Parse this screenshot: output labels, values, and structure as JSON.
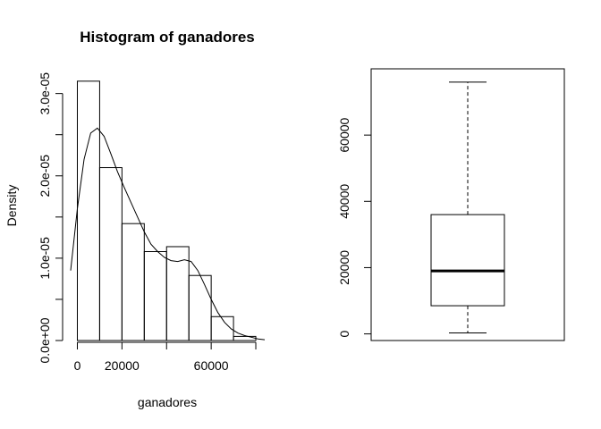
{
  "chart_data": [
    {
      "type": "bar",
      "subtype": "histogram",
      "title": "Histogram of ganadores",
      "xlabel": "ganadores",
      "ylabel": "Density",
      "bins": [
        {
          "x0": 0,
          "x1": 10000,
          "density": 3.15e-05
        },
        {
          "x0": 10000,
          "x1": 20000,
          "density": 2.1e-05
        },
        {
          "x0": 20000,
          "x1": 30000,
          "density": 1.42e-05
        },
        {
          "x0": 30000,
          "x1": 40000,
          "density": 1.08e-05
        },
        {
          "x0": 40000,
          "x1": 50000,
          "density": 1.14e-05
        },
        {
          "x0": 50000,
          "x1": 60000,
          "density": 7.9e-06
        },
        {
          "x0": 60000,
          "x1": 70000,
          "density": 2.9e-06
        },
        {
          "x0": 70000,
          "x1": 80000,
          "density": 5e-07
        }
      ],
      "density_curve": {
        "x": [
          -3000,
          0,
          3000,
          6000,
          9000,
          12000,
          15000,
          18000,
          21000,
          24000,
          27000,
          30000,
          33000,
          36000,
          39000,
          42000,
          45000,
          48000,
          51000,
          54000,
          57000,
          60000,
          63000,
          66000,
          69000,
          72000,
          75000,
          78000,
          81000,
          84000
        ],
        "y": [
          8.5e-06,
          1.6e-05,
          2.2e-05,
          2.52e-05,
          2.58e-05,
          2.48e-05,
          2.27e-05,
          2.05e-05,
          1.86e-05,
          1.68e-05,
          1.5e-05,
          1.32e-05,
          1.17e-05,
          1.08e-05,
          1.01e-05,
          9.7e-06,
          9.6e-06,
          9.8e-06,
          9.6e-06,
          8.5e-06,
          6.8e-06,
          5e-06,
          3.4e-06,
          2.2e-06,
          1.4e-06,
          9e-07,
          6e-07,
          4e-07,
          2e-07,
          1e-07
        ]
      },
      "xlim": [
        -3000,
        84000
      ],
      "ylim": [
        0,
        3.3e-05
      ],
      "x_ticks": [
        0,
        20000,
        40000,
        60000,
        80000
      ],
      "x_tick_labels": [
        "0",
        "20000",
        "",
        "60000",
        ""
      ],
      "y_ticks": [
        0,
        5e-06,
        1e-05,
        1.5e-05,
        2e-05,
        2.5e-05,
        3e-05
      ],
      "y_tick_labels": [
        "0.0e+00",
        "",
        "1.0e-05",
        "",
        "2.0e-05",
        "",
        "3.0e-05"
      ],
      "grid": false
    },
    {
      "type": "box",
      "title": "",
      "xlabel": "",
      "ylabel": "",
      "whisker_low": 300,
      "q1": 8500,
      "median": 19000,
      "q3": 36000,
      "whisker_high": 76000,
      "ylim": [
        -2000,
        80000
      ],
      "y_ticks": [
        0,
        20000,
        40000,
        60000
      ],
      "y_tick_labels": [
        "0",
        "20000",
        "40000",
        "60000"
      ],
      "grid": false
    }
  ]
}
